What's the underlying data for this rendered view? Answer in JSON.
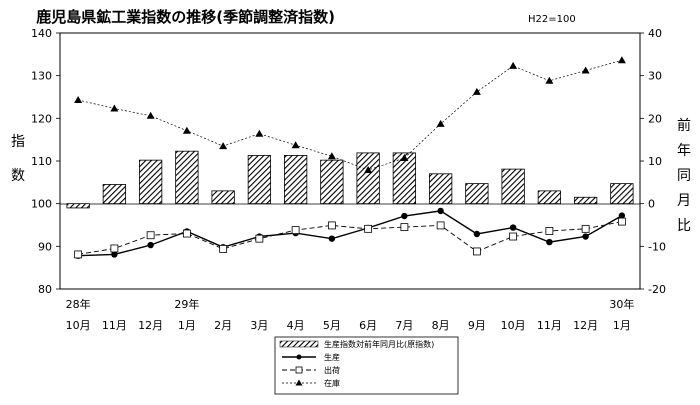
{
  "chart_data": {
    "type": "bar+line",
    "title": "鹿児島県鉱工業指数の推移(季節調整済指数)",
    "subtitle": "H22=100",
    "ylabel_left": [
      "指",
      "数"
    ],
    "ylabel_right": [
      "前",
      "年",
      "同",
      "月",
      "比"
    ],
    "ylim_left": [
      80,
      140
    ],
    "ylim_right": [
      -20,
      40
    ],
    "yticks_left": [
      "80",
      "90",
      "100",
      "110",
      "120",
      "130",
      "140"
    ],
    "yticks_right": [
      "-20",
      "-10",
      "0",
      "10",
      "20",
      "30",
      "40"
    ],
    "year_labels": [
      {
        "index": 0,
        "label": "28年"
      },
      {
        "index": 3,
        "label": "29年"
      },
      {
        "index": 15,
        "label": "30年"
      }
    ],
    "categories": [
      "10月",
      "11月",
      "12月",
      "1月",
      "2月",
      "3月",
      "4月",
      "5月",
      "6月",
      "7月",
      "8月",
      "9月",
      "10月",
      "11月",
      "12月",
      "1月"
    ],
    "series": [
      {
        "name": "生産指数対前年同月比(原指数)",
        "kind": "bar",
        "axis": "right",
        "values": [
          -1,
          4.5,
          10.2,
          12.3,
          3,
          11.3,
          11.3,
          10.2,
          11.9,
          11.9,
          7,
          4.7,
          8.1,
          3,
          1.5,
          4.7
        ]
      },
      {
        "name": "生産",
        "kind": "line",
        "marker": "circle",
        "axis": "left",
        "values": [
          87.8,
          88.1,
          90.3,
          93.5,
          89.8,
          92.3,
          93.1,
          91.8,
          94.3,
          97.1,
          98.3,
          92.9,
          94.4,
          91,
          92.3,
          97.2
        ]
      },
      {
        "name": "出荷",
        "kind": "line",
        "marker": "square",
        "axis": "left",
        "values": [
          88.1,
          89.5,
          92.6,
          93,
          89.4,
          91.8,
          93.8,
          94.9,
          94.1,
          94.5,
          94.9,
          88.8,
          92.3,
          93.6,
          94.1,
          95.8
        ]
      },
      {
        "name": "在庫",
        "kind": "line",
        "marker": "triangle",
        "axis": "left",
        "values": [
          124.3,
          122.3,
          120.6,
          117.1,
          113.5,
          116.4,
          113.7,
          111.1,
          107.9,
          110.7,
          118.7,
          126.2,
          132.3,
          128.8,
          131.2,
          133.6
        ]
      }
    ]
  }
}
